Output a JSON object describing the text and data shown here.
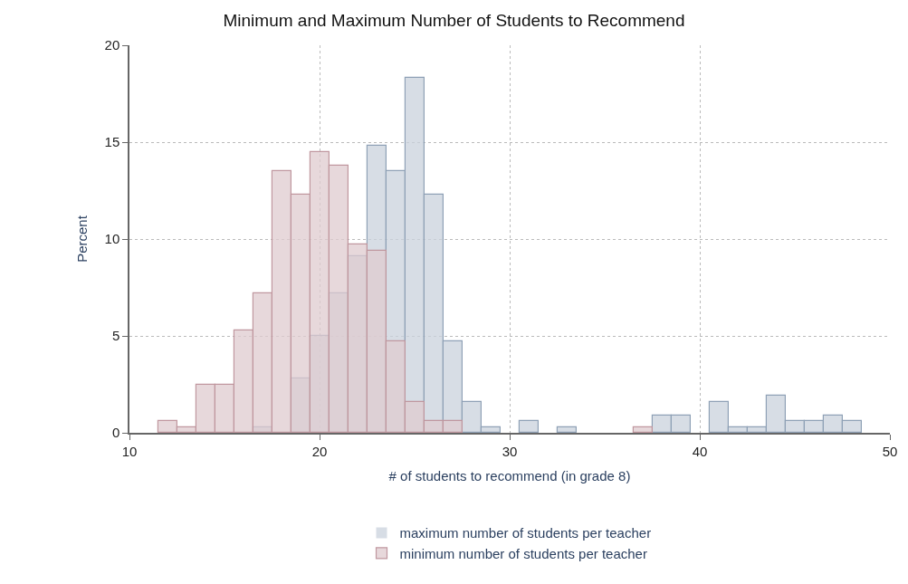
{
  "chart_data": {
    "type": "histogram",
    "title": "Minimum and Maximum Number of Students to Recommend",
    "xlabel": "# of students to recommend (in grade 8)",
    "ylabel": "Percent",
    "bins": [
      11.5,
      12.5,
      13.5,
      14.5,
      15.5,
      16.5,
      17.5,
      18.5,
      19.5,
      20.5,
      21.5,
      22.5,
      23.5,
      24.5,
      25.5,
      26.5,
      27.5,
      28.5,
      29.5,
      30.5,
      31.5,
      32.5,
      33.5,
      34.5,
      35.5,
      36.5,
      37.5,
      38.5,
      39.5,
      40.5,
      41.5,
      42.5,
      43.5,
      44.5,
      45.5,
      46.5,
      47.5,
      48.5
    ],
    "series": [
      {
        "name": "maximum number of students per teacher",
        "color": "#c9d1dc",
        "values": [
          0,
          0,
          0,
          0,
          0,
          0.3,
          0,
          2.8,
          5.0,
          7.2,
          9.1,
          14.8,
          13.5,
          18.3,
          12.3,
          4.7,
          1.6,
          0.3,
          0,
          0.6,
          0,
          0.3,
          0,
          0,
          0,
          0,
          0.9,
          0.9,
          0,
          1.6,
          0.3,
          0.3,
          1.9,
          0.6,
          0.6,
          0.9,
          0.6
        ]
      },
      {
        "name": "minimum number of students per teacher",
        "color": "#dfcbcf",
        "values": [
          0.6,
          0.3,
          2.5,
          2.5,
          5.3,
          7.2,
          13.5,
          12.3,
          14.5,
          13.8,
          9.7,
          9.4,
          4.7,
          1.6,
          0.6,
          0.6,
          0,
          0,
          0,
          0,
          0,
          0,
          0,
          0,
          0,
          0.3,
          0,
          0,
          0,
          0,
          0,
          0,
          0,
          0,
          0,
          0,
          0
        ]
      }
    ],
    "xlim": [
      10,
      50
    ],
    "xticks": [
      10,
      20,
      30,
      40,
      50
    ],
    "ylim": [
      0,
      20
    ],
    "yticks": [
      0,
      5,
      10,
      15,
      20
    ],
    "grid": true,
    "legend": "bottom"
  }
}
